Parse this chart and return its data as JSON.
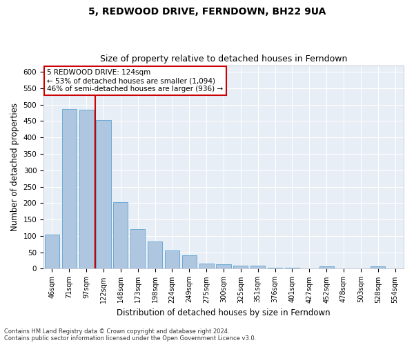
{
  "title": "5, REDWOOD DRIVE, FERNDOWN, BH22 9UA",
  "subtitle": "Size of property relative to detached houses in Ferndown",
  "xlabel": "Distribution of detached houses by size in Ferndown",
  "ylabel": "Number of detached properties",
  "bar_labels": [
    "46sqm",
    "71sqm",
    "97sqm",
    "122sqm",
    "148sqm",
    "173sqm",
    "198sqm",
    "224sqm",
    "249sqm",
    "275sqm",
    "300sqm",
    "325sqm",
    "351sqm",
    "376sqm",
    "401sqm",
    "427sqm",
    "452sqm",
    "478sqm",
    "503sqm",
    "528sqm",
    "554sqm"
  ],
  "bar_values": [
    105,
    487,
    484,
    454,
    202,
    120,
    83,
    56,
    40,
    15,
    14,
    10,
    10,
    2,
    2,
    0,
    7,
    0,
    0,
    7,
    0
  ],
  "bar_color": "#aec6e0",
  "bar_edge_color": "#6aaad4",
  "red_line_index": 3,
  "annotation_line1": "5 REDWOOD DRIVE: 124sqm",
  "annotation_line2": "← 53% of detached houses are smaller (1,094)",
  "annotation_line3": "46% of semi-detached houses are larger (936) →",
  "annotation_box_color": "#ffffff",
  "annotation_box_edge": "#cc0000",
  "ylim": [
    0,
    620
  ],
  "yticks": [
    0,
    50,
    100,
    150,
    200,
    250,
    300,
    350,
    400,
    450,
    500,
    550,
    600
  ],
  "fig_bg_color": "#ffffff",
  "axes_bg_color": "#e8eef5",
  "grid_color": "#ffffff",
  "footer_text": "Contains HM Land Registry data © Crown copyright and database right 2024.\nContains public sector information licensed under the Open Government Licence v3.0.",
  "title_fontsize": 10,
  "subtitle_fontsize": 9,
  "tick_fontsize": 7,
  "ylabel_fontsize": 8.5,
  "xlabel_fontsize": 8.5,
  "annotation_fontsize": 7.5,
  "footer_fontsize": 6
}
